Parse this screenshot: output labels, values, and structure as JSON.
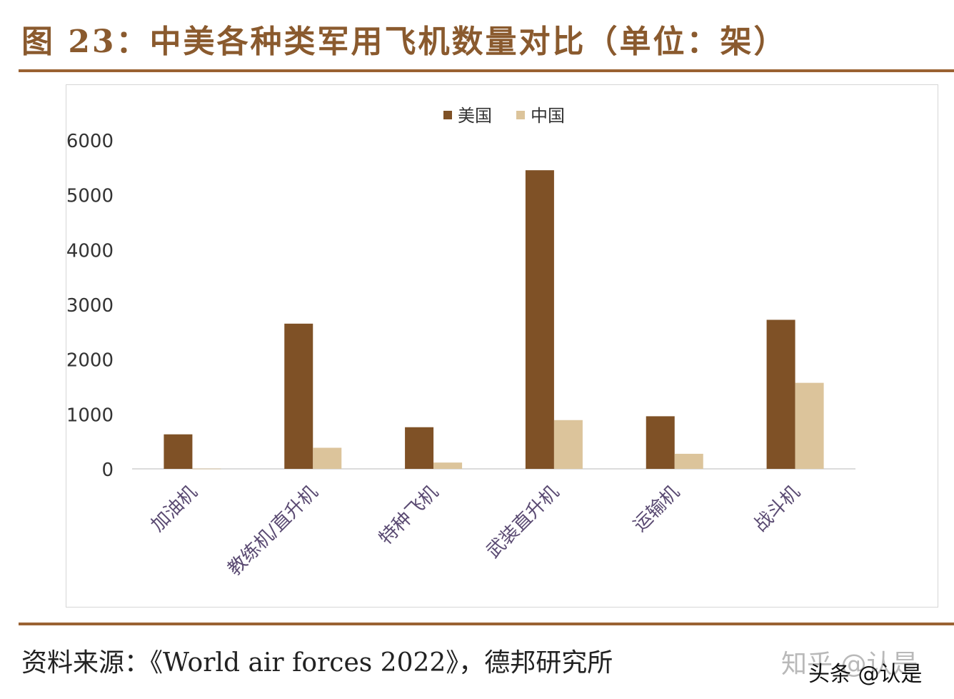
{
  "figure": {
    "title": "图 23：中美各种类军用飞机数量对比（单位：架）",
    "source": "资料来源：《World air forces 2022》，德邦研究所",
    "watermark": "知乎 @认是",
    "watermark2": "头条 @认是"
  },
  "colors": {
    "accent": "#9a6232",
    "usa": "#7f5126",
    "china": "#dcc49b"
  },
  "chart_data": {
    "type": "bar",
    "categories": [
      "加油机",
      "教练机/直升机",
      "特种飞机",
      "武装直升机",
      "运输机",
      "战斗机"
    ],
    "series": [
      {
        "name": "美国",
        "values": [
          630,
          2650,
          760,
          5450,
          960,
          2720
        ]
      },
      {
        "name": "中国",
        "values": [
          5,
          385,
          115,
          890,
          275,
          1570
        ]
      }
    ],
    "ylim": [
      0,
      6000
    ],
    "yticks": [
      "0",
      "1000",
      "2000",
      "3000",
      "4000",
      "5000",
      "6000"
    ],
    "legend_position": "top-center",
    "grid": false
  }
}
